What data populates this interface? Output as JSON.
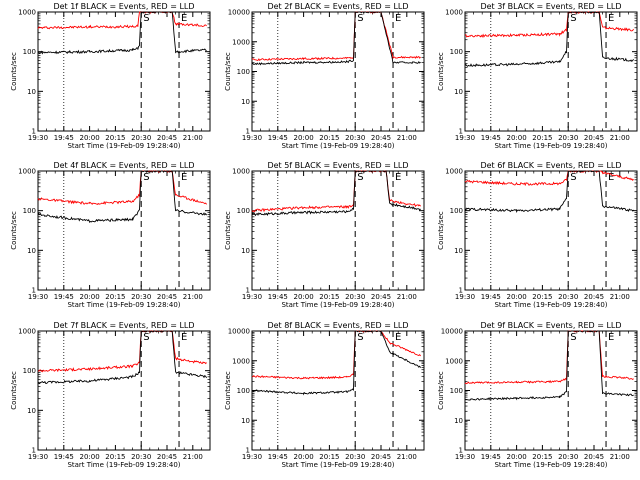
{
  "figure": {
    "layout": "3x3 grid of panels",
    "colors": {
      "events": "#000000",
      "lld": "#ff0000",
      "axes": "#000000",
      "background": "#ffffff"
    }
  },
  "chart_data": [
    {
      "type": "line",
      "title": "Det 1f BLACK = Events, RED = LLD",
      "xlabel": "Start Time (19-Feb-09 19:28:40)",
      "ylabel": "Counts/sec",
      "yscale": "log",
      "ylim": [
        1,
        1000
      ],
      "yticks": [
        "1",
        "10",
        "100",
        "1000"
      ],
      "xlim": [
        "19:30",
        "21:10"
      ],
      "xticks": [
        "19:30",
        "19:45",
        "20:00",
        "20:15",
        "20:30",
        "20:45",
        "21:00"
      ],
      "markers": [
        {
          "label": "S",
          "time": "20:30"
        },
        {
          "label": "E",
          "time": "20:52"
        }
      ],
      "series": [
        {
          "name": "LLD",
          "color": "#ff0000",
          "points": [
            [
              "19:30",
              400
            ],
            [
              "20:00",
              420
            ],
            [
              "20:25",
              430
            ],
            [
              "20:28",
              450
            ],
            [
              "20:29",
              1000
            ],
            [
              "20:48",
              1000
            ],
            [
              "20:50",
              500
            ],
            [
              "21:08",
              450
            ]
          ]
        },
        {
          "name": "Events",
          "color": "#000000",
          "points": [
            [
              "19:30",
              95
            ],
            [
              "20:00",
              100
            ],
            [
              "20:25",
              110
            ],
            [
              "20:28",
              120
            ],
            [
              "20:29",
              150
            ],
            [
              "20:30",
              1000
            ],
            [
              "20:48",
              1000
            ],
            [
              "20:50",
              100
            ],
            [
              "21:08",
              110
            ]
          ]
        }
      ]
    },
    {
      "type": "line",
      "title": "Det 2f BLACK = Events, RED = LLD",
      "xlabel": "Start Time (19-Feb-09 19:28:40)",
      "ylabel": "Counts/sec",
      "yscale": "log",
      "ylim": [
        1,
        10000
      ],
      "yticks": [
        "1",
        "10",
        "100",
        "1000",
        "10000"
      ],
      "xlim": [
        "19:30",
        "21:10"
      ],
      "xticks": [
        "19:30",
        "19:45",
        "20:00",
        "20:15",
        "20:30",
        "20:45",
        "21:00"
      ],
      "markers": [
        {
          "label": "S",
          "time": "20:30"
        },
        {
          "label": "E",
          "time": "20:52"
        }
      ],
      "series": [
        {
          "name": "LLD",
          "color": "#ff0000",
          "points": [
            [
              "19:30",
              250
            ],
            [
              "20:00",
              270
            ],
            [
              "20:25",
              280
            ],
            [
              "20:29",
              300
            ],
            [
              "20:30",
              10000
            ],
            [
              "20:45",
              10000
            ],
            [
              "20:52",
              300
            ],
            [
              "21:08",
              300
            ]
          ]
        },
        {
          "name": "Events",
          "color": "#000000",
          "points": [
            [
              "19:30",
              180
            ],
            [
              "20:00",
              200
            ],
            [
              "20:25",
              210
            ],
            [
              "20:29",
              240
            ],
            [
              "20:30",
              10000
            ],
            [
              "20:45",
              10000
            ],
            [
              "20:52",
              200
            ],
            [
              "21:08",
              200
            ]
          ]
        }
      ]
    },
    {
      "type": "line",
      "title": "Det 3f BLACK = Events, RED = LLD",
      "xlabel": "Start Time (19-Feb-09 19:28:40)",
      "ylabel": "Counts/sec",
      "yscale": "log",
      "ylim": [
        1,
        1000
      ],
      "yticks": [
        "1",
        "10",
        "100",
        "1000"
      ],
      "xlim": [
        "19:30",
        "21:10"
      ],
      "xticks": [
        "19:30",
        "19:45",
        "20:00",
        "20:15",
        "20:30",
        "20:45",
        "21:00"
      ],
      "markers": [
        {
          "label": "S",
          "time": "20:30"
        },
        {
          "label": "E",
          "time": "20:52"
        }
      ],
      "series": [
        {
          "name": "LLD",
          "color": "#ff0000",
          "points": [
            [
              "19:30",
              250
            ],
            [
              "20:00",
              260
            ],
            [
              "20:25",
              280
            ],
            [
              "20:29",
              350
            ],
            [
              "20:30",
              1000
            ],
            [
              "20:48",
              1000
            ],
            [
              "20:50",
              400
            ],
            [
              "21:08",
              350
            ]
          ]
        },
        {
          "name": "Events",
          "color": "#000000",
          "points": [
            [
              "19:30",
              45
            ],
            [
              "20:00",
              48
            ],
            [
              "20:25",
              55
            ],
            [
              "20:29",
              100
            ],
            [
              "20:30",
              1000
            ],
            [
              "20:48",
              1000
            ],
            [
              "20:50",
              70
            ],
            [
              "21:08",
              60
            ]
          ]
        }
      ]
    },
    {
      "type": "line",
      "title": "Det 4f BLACK = Events, RED = LLD",
      "xlabel": "Start Time (19-Feb-09 19:28:40)",
      "ylabel": "Counts/sec",
      "yscale": "log",
      "ylim": [
        1,
        1000
      ],
      "yticks": [
        "1",
        "10",
        "100",
        "1000"
      ],
      "xlim": [
        "19:30",
        "21:10"
      ],
      "xticks": [
        "19:30",
        "19:45",
        "20:00",
        "20:15",
        "20:30",
        "20:45",
        "21:00"
      ],
      "markers": [
        {
          "label": "S",
          "time": "20:30"
        },
        {
          "label": "E",
          "time": "20:52"
        }
      ],
      "series": [
        {
          "name": "LLD",
          "color": "#ff0000",
          "points": [
            [
              "19:30",
              200
            ],
            [
              "20:00",
              150
            ],
            [
              "20:25",
              170
            ],
            [
              "20:29",
              250
            ],
            [
              "20:30",
              1000
            ],
            [
              "20:48",
              1000
            ],
            [
              "20:50",
              250
            ],
            [
              "21:08",
              150
            ]
          ]
        },
        {
          "name": "Events",
          "color": "#000000",
          "points": [
            [
              "19:30",
              80
            ],
            [
              "20:00",
              55
            ],
            [
              "20:25",
              60
            ],
            [
              "20:29",
              100
            ],
            [
              "20:30",
              1000
            ],
            [
              "20:48",
              1000
            ],
            [
              "20:50",
              100
            ],
            [
              "21:08",
              80
            ]
          ]
        }
      ]
    },
    {
      "type": "line",
      "title": "Det 5f BLACK = Events, RED = LLD",
      "xlabel": "Start Time (19-Feb-09 19:28:40)",
      "ylabel": "Counts/sec",
      "yscale": "log",
      "ylim": [
        1,
        1000
      ],
      "yticks": [
        "1",
        "10",
        "100",
        "1000"
      ],
      "xlim": [
        "19:30",
        "21:10"
      ],
      "xticks": [
        "19:30",
        "19:45",
        "20:00",
        "20:15",
        "20:30",
        "20:45",
        "21:00"
      ],
      "markers": [
        {
          "label": "S",
          "time": "20:30"
        },
        {
          "label": "E",
          "time": "20:52"
        }
      ],
      "series": [
        {
          "name": "LLD",
          "color": "#ff0000",
          "points": [
            [
              "19:30",
              100
            ],
            [
              "20:00",
              120
            ],
            [
              "20:25",
              125
            ],
            [
              "20:29",
              130
            ],
            [
              "20:30",
              1000
            ],
            [
              "20:48",
              1000
            ],
            [
              "20:50",
              180
            ],
            [
              "21:08",
              130
            ]
          ]
        },
        {
          "name": "Events",
          "color": "#000000",
          "points": [
            [
              "19:30",
              80
            ],
            [
              "20:00",
              90
            ],
            [
              "20:25",
              95
            ],
            [
              "20:29",
              110
            ],
            [
              "20:30",
              1000
            ],
            [
              "20:48",
              1000
            ],
            [
              "20:50",
              150
            ],
            [
              "21:08",
              110
            ]
          ]
        }
      ]
    },
    {
      "type": "line",
      "title": "Det 6f BLACK = Events, RED = LLD",
      "xlabel": "Start Time (19-Feb-09 19:28:40)",
      "ylabel": "Counts/sec",
      "yscale": "log",
      "ylim": [
        1,
        1000
      ],
      "yticks": [
        "1",
        "10",
        "100",
        "1000"
      ],
      "xlim": [
        "19:30",
        "21:10"
      ],
      "xticks": [
        "19:30",
        "19:45",
        "20:00",
        "20:15",
        "20:30",
        "20:45",
        "21:00"
      ],
      "markers": [
        {
          "label": "S",
          "time": "20:30"
        },
        {
          "label": "E",
          "time": "20:52"
        }
      ],
      "series": [
        {
          "name": "LLD",
          "color": "#ff0000",
          "points": [
            [
              "19:30",
              550
            ],
            [
              "20:00",
              470
            ],
            [
              "20:25",
              480
            ],
            [
              "20:29",
              600
            ],
            [
              "20:30",
              1000
            ],
            [
              "20:48",
              1000
            ],
            [
              "20:50",
              900
            ],
            [
              "21:08",
              600
            ]
          ]
        },
        {
          "name": "Events",
          "color": "#000000",
          "points": [
            [
              "19:30",
              110
            ],
            [
              "20:00",
              100
            ],
            [
              "20:25",
              110
            ],
            [
              "20:29",
              200
            ],
            [
              "20:30",
              1000
            ],
            [
              "20:48",
              1000
            ],
            [
              "20:50",
              130
            ],
            [
              "21:08",
              100
            ]
          ]
        }
      ]
    },
    {
      "type": "line",
      "title": "Det 7f BLACK = Events, RED = LLD",
      "xlabel": "Start Time (19-Feb-09 19:28:40)",
      "ylabel": "Counts/sec",
      "yscale": "log",
      "ylim": [
        1,
        1000
      ],
      "yticks": [
        "1",
        "10",
        "100",
        "1000"
      ],
      "xlim": [
        "19:30",
        "21:10"
      ],
      "xticks": [
        "19:30",
        "19:45",
        "20:00",
        "20:15",
        "20:30",
        "20:45",
        "21:00"
      ],
      "markers": [
        {
          "label": "S",
          "time": "20:30"
        },
        {
          "label": "E",
          "time": "20:52"
        }
      ],
      "series": [
        {
          "name": "LLD",
          "color": "#ff0000",
          "points": [
            [
              "19:30",
              100
            ],
            [
              "20:00",
              110
            ],
            [
              "20:25",
              130
            ],
            [
              "20:29",
              160
            ],
            [
              "20:30",
              1000
            ],
            [
              "20:48",
              1000
            ],
            [
              "20:50",
              200
            ],
            [
              "21:08",
              150
            ]
          ]
        },
        {
          "name": "Events",
          "color": "#000000",
          "points": [
            [
              "19:30",
              50
            ],
            [
              "20:00",
              55
            ],
            [
              "20:25",
              70
            ],
            [
              "20:29",
              90
            ],
            [
              "20:30",
              1000
            ],
            [
              "20:48",
              1000
            ],
            [
              "20:50",
              90
            ],
            [
              "21:08",
              70
            ]
          ]
        }
      ]
    },
    {
      "type": "line",
      "title": "Det 8f BLACK = Events, RED = LLD",
      "xlabel": "Start Time (19-Feb-09 19:28:40)",
      "ylabel": "Counts/sec",
      "yscale": "log",
      "ylim": [
        1,
        10000
      ],
      "yticks": [
        "1",
        "10",
        "100",
        "1000",
        "10000"
      ],
      "xlim": [
        "19:30",
        "21:10"
      ],
      "xticks": [
        "19:30",
        "19:45",
        "20:00",
        "20:15",
        "20:30",
        "20:45",
        "21:00"
      ],
      "markers": [
        {
          "label": "S",
          "time": "20:30"
        },
        {
          "label": "E",
          "time": "20:52"
        }
      ],
      "series": [
        {
          "name": "LLD",
          "color": "#ff0000",
          "points": [
            [
              "19:30",
              300
            ],
            [
              "20:00",
              260
            ],
            [
              "20:25",
              280
            ],
            [
              "20:29",
              350
            ],
            [
              "20:30",
              10000
            ],
            [
              "20:45",
              10000
            ],
            [
              "20:50",
              4000
            ],
            [
              "21:08",
              1500
            ]
          ]
        },
        {
          "name": "Events",
          "color": "#000000",
          "points": [
            [
              "19:30",
              100
            ],
            [
              "20:00",
              80
            ],
            [
              "20:25",
              90
            ],
            [
              "20:29",
              110
            ],
            [
              "20:30",
              10000
            ],
            [
              "20:45",
              10000
            ],
            [
              "20:50",
              2000
            ],
            [
              "21:08",
              600
            ]
          ]
        }
      ]
    },
    {
      "type": "line",
      "title": "Det 9f BLACK = Events, RED = LLD",
      "xlabel": "Start Time (19-Feb-09 19:28:40)",
      "ylabel": "Counts/sec",
      "yscale": "log",
      "ylim": [
        1,
        10000
      ],
      "yticks": [
        "1",
        "10",
        "100",
        "1000",
        "10000"
      ],
      "xlim": [
        "19:30",
        "21:10"
      ],
      "xticks": [
        "19:30",
        "19:45",
        "20:00",
        "20:15",
        "20:30",
        "20:45",
        "21:00"
      ],
      "markers": [
        {
          "label": "S",
          "time": "20:30"
        },
        {
          "label": "E",
          "time": "20:52"
        }
      ],
      "series": [
        {
          "name": "LLD",
          "color": "#ff0000",
          "points": [
            [
              "19:30",
              180
            ],
            [
              "20:00",
              190
            ],
            [
              "20:25",
              200
            ],
            [
              "20:29",
              250
            ],
            [
              "20:30",
              10000
            ],
            [
              "20:48",
              10000
            ],
            [
              "20:50",
              300
            ],
            [
              "21:08",
              250
            ]
          ]
        },
        {
          "name": "Events",
          "color": "#000000",
          "points": [
            [
              "19:30",
              50
            ],
            [
              "20:00",
              55
            ],
            [
              "20:25",
              60
            ],
            [
              "20:29",
              90
            ],
            [
              "20:30",
              10000
            ],
            [
              "20:48",
              10000
            ],
            [
              "20:50",
              80
            ],
            [
              "21:08",
              70
            ]
          ]
        }
      ]
    }
  ]
}
